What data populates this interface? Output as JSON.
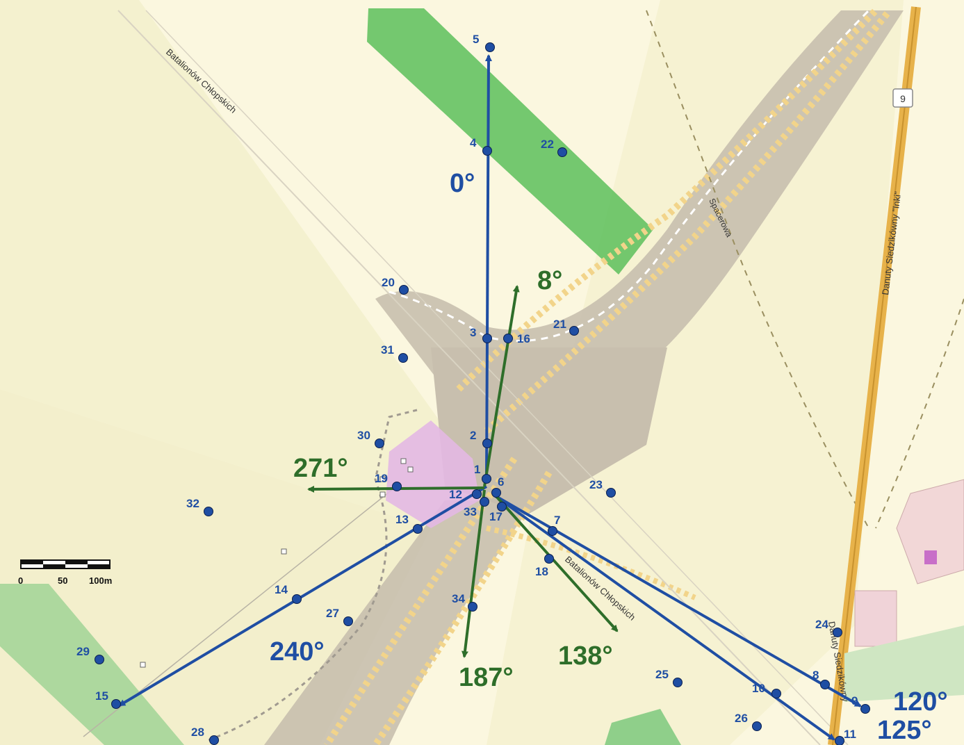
{
  "roads": {
    "batalionow_chlopskich_upper": "Batalionów Chłopskich",
    "batalionow_chlopskich_lower": "Batalionów Chłopskich",
    "spacerowa": "Spacerowa",
    "danuty_siedzikowny": "Danuty Siedzikówny \"Inki\"",
    "danuty_siedzikowny_lower": "Danuty Siedzikówny",
    "route_number": "9"
  },
  "scale_bar": {
    "label_0": "0",
    "label_50": "50",
    "label_100": "100m"
  },
  "points": [
    {
      "label": "1"
    },
    {
      "label": "2"
    },
    {
      "label": "3"
    },
    {
      "label": "4"
    },
    {
      "label": "5"
    },
    {
      "label": "6"
    },
    {
      "label": "7"
    },
    {
      "label": "8"
    },
    {
      "label": "9"
    },
    {
      "label": "10"
    },
    {
      "label": "11"
    },
    {
      "label": "12"
    },
    {
      "label": "13"
    },
    {
      "label": "14"
    },
    {
      "label": "15"
    },
    {
      "label": "16"
    },
    {
      "label": "17"
    },
    {
      "label": "18"
    },
    {
      "label": "19"
    },
    {
      "label": "20"
    },
    {
      "label": "21"
    },
    {
      "label": "22"
    },
    {
      "label": "23"
    },
    {
      "label": "24"
    },
    {
      "label": "25"
    },
    {
      "label": "26"
    },
    {
      "label": "27"
    },
    {
      "label": "28"
    },
    {
      "label": "29"
    },
    {
      "label": "30"
    },
    {
      "label": "31"
    },
    {
      "label": "32"
    },
    {
      "label": "33"
    },
    {
      "label": "34"
    }
  ],
  "blue_directions": [
    {
      "label": "0°",
      "bearing": 0
    },
    {
      "label": "240°",
      "bearing": 240
    },
    {
      "label": "120°",
      "bearing": 120
    },
    {
      "label": "125°",
      "bearing": 125
    }
  ],
  "green_directions": [
    {
      "label": "8°",
      "bearing": 8
    },
    {
      "label": "271°",
      "bearing": 271
    },
    {
      "label": "187°",
      "bearing": 187
    },
    {
      "label": "138°",
      "bearing": 138
    }
  ],
  "colors": {
    "blue": "#1f4ea3",
    "green": "#2e6e2a",
    "road_fill": "#c8bfae",
    "crosswalk": "#f2d48a",
    "green_area": "#5cbf5c",
    "building": "#e3b8e3",
    "arterial": "#e7b24a"
  }
}
